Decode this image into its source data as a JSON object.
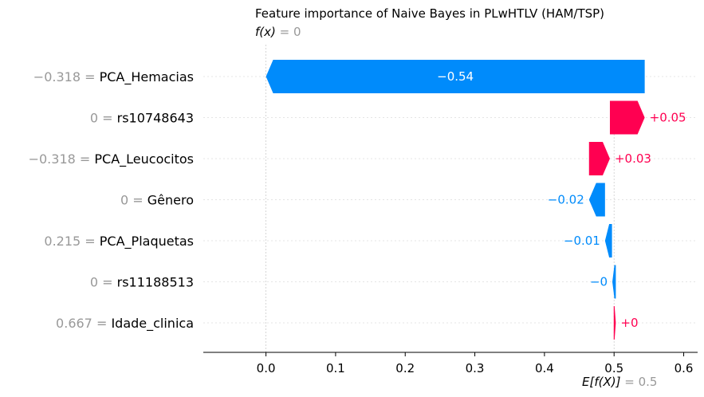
{
  "chart_data": {
    "type": "bar",
    "subtype": "shap-waterfall",
    "title": "Feature importance of Naive Bayes in PLwHTLV (HAM/TSP)",
    "fx_label": "f(x)",
    "fx_value": "0",
    "ex_label": "E[f(X)]",
    "ex_value": "0.5",
    "base_value": 0.5,
    "final_value": 0.0,
    "xlim": [
      -0.09,
      0.62
    ],
    "xticks": [
      0.0,
      0.1,
      0.2,
      0.3,
      0.4,
      0.5,
      0.6
    ],
    "xtick_labels": [
      "0.0",
      "0.1",
      "0.2",
      "0.3",
      "0.4",
      "0.5",
      "0.6"
    ],
    "colors": {
      "positive": "#ff0051",
      "negative": "#008bfb",
      "muted": "#999999",
      "grid": "#e4e4e4"
    },
    "features": [
      {
        "value": "−0.318",
        "name": "PCA_Hemacias",
        "start": 0.544,
        "end": 0.0,
        "label": "−0.54"
      },
      {
        "value": "0",
        "name": "rs10748643",
        "start": 0.494,
        "end": 0.544,
        "label": "+0.05"
      },
      {
        "value": "−0.318",
        "name": "PCA_Leucocitos",
        "start": 0.464,
        "end": 0.494,
        "label": "+0.03"
      },
      {
        "value": "0",
        "name": "Gênero",
        "start": 0.487,
        "end": 0.464,
        "label": "−0.02"
      },
      {
        "value": "0.215",
        "name": "PCA_Plaquetas",
        "start": 0.497,
        "end": 0.487,
        "label": "−0.01"
      },
      {
        "value": "0",
        "name": "rs11188513",
        "start": 0.5025,
        "end": 0.4975,
        "label": "−0"
      },
      {
        "value": "0.667",
        "name": "Idade_clinica",
        "start": 0.4995,
        "end": 0.5025,
        "label": "+0"
      }
    ]
  }
}
